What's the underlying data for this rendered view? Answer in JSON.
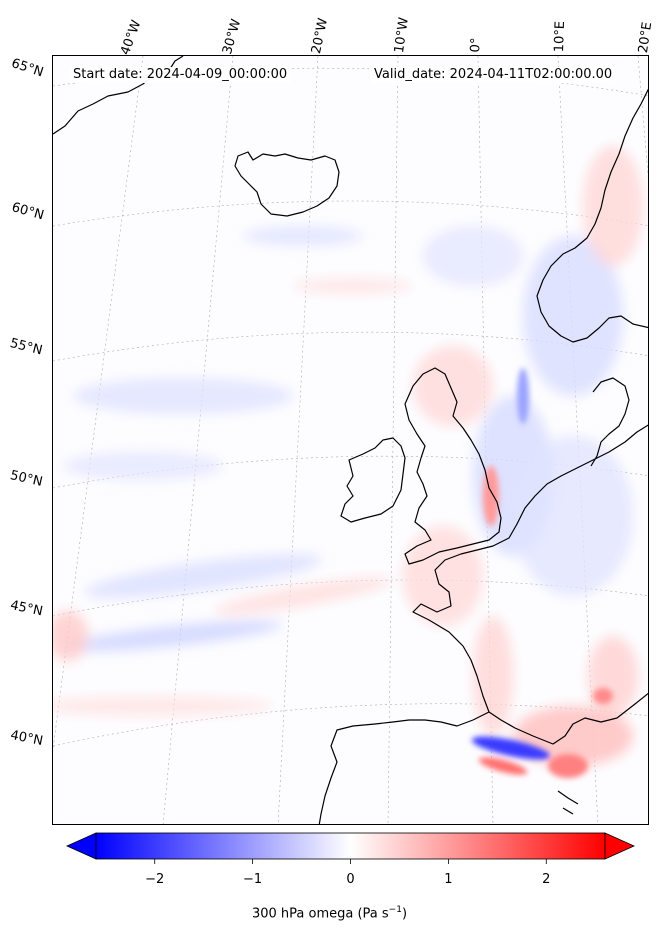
{
  "header": {
    "start_date": "Start date: 2024-04-09_00:00:00",
    "valid_date": "Valid_date: 2024-04-11T02:00:00.00"
  },
  "map": {
    "projection": "conic",
    "gridlines": "dotted",
    "coastlines": "black",
    "lon_labels": [
      "40°W",
      "30°W",
      "20°W",
      "10°W",
      "0°",
      "10°E",
      "20°E"
    ],
    "lat_labels": [
      "65°N",
      "60°N",
      "55°N",
      "50°N",
      "45°N",
      "40°N"
    ]
  },
  "colorbar": {
    "colormap": "bwr",
    "min_color": "#0000ff",
    "mid_color": "#ffffff",
    "max_color": "#ff0000",
    "range": [
      -2.6,
      2.6
    ],
    "extend": "both",
    "ticks": [
      "−2",
      "−1",
      "0",
      "1",
      "2"
    ],
    "tick_values": [
      -2,
      -1,
      0,
      1,
      2
    ],
    "label": "300 hPa omega (Pa s",
    "label_sup": "−1",
    "label_end": ")"
  }
}
